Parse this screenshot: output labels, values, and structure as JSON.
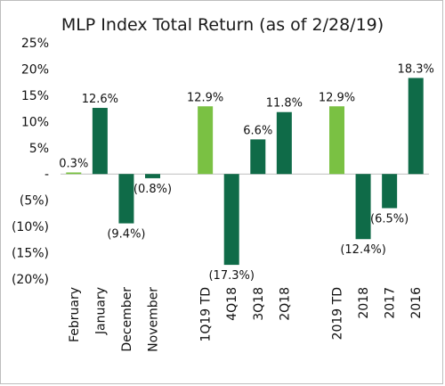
{
  "chart_data": {
    "type": "bar",
    "title": "MLP Index Total Return (as of 2/28/19)",
    "xlabel": "",
    "ylabel": "",
    "ylim": [
      -20,
      25
    ],
    "yticks": [
      "25%",
      "20%",
      "15%",
      "10%",
      "5%",
      "-",
      "(5%)",
      "(10%)",
      "(15%)",
      "(20%)"
    ],
    "ytick_values": [
      25,
      20,
      15,
      10,
      5,
      0,
      -5,
      -10,
      -15,
      -20
    ],
    "grid": false,
    "legend": "none",
    "colors": {
      "dark": "#0f6b48",
      "light": "#7ac143"
    },
    "categories": [
      "February",
      "January",
      "December",
      "November",
      "",
      "1Q19 TD",
      "4Q18",
      "3Q18",
      "2Q18",
      "",
      "2019 TD",
      "2018",
      "2017",
      "2016"
    ],
    "values": [
      0.3,
      12.6,
      -9.4,
      -0.8,
      null,
      12.9,
      -17.3,
      6.6,
      11.8,
      null,
      12.9,
      -12.4,
      -6.5,
      18.3
    ],
    "labels": [
      "0.3%",
      "12.6%",
      "(9.4%)",
      "(0.8%)",
      "",
      "12.9%",
      "(17.3%)",
      "6.6%",
      "11.8%",
      "",
      "12.9%",
      "(12.4%)",
      "(6.5%)",
      "18.3%"
    ],
    "bar_colors": [
      "light",
      "dark",
      "dark",
      "dark",
      "",
      "light",
      "dark",
      "dark",
      "dark",
      "",
      "light",
      "dark",
      "dark",
      "dark"
    ]
  }
}
